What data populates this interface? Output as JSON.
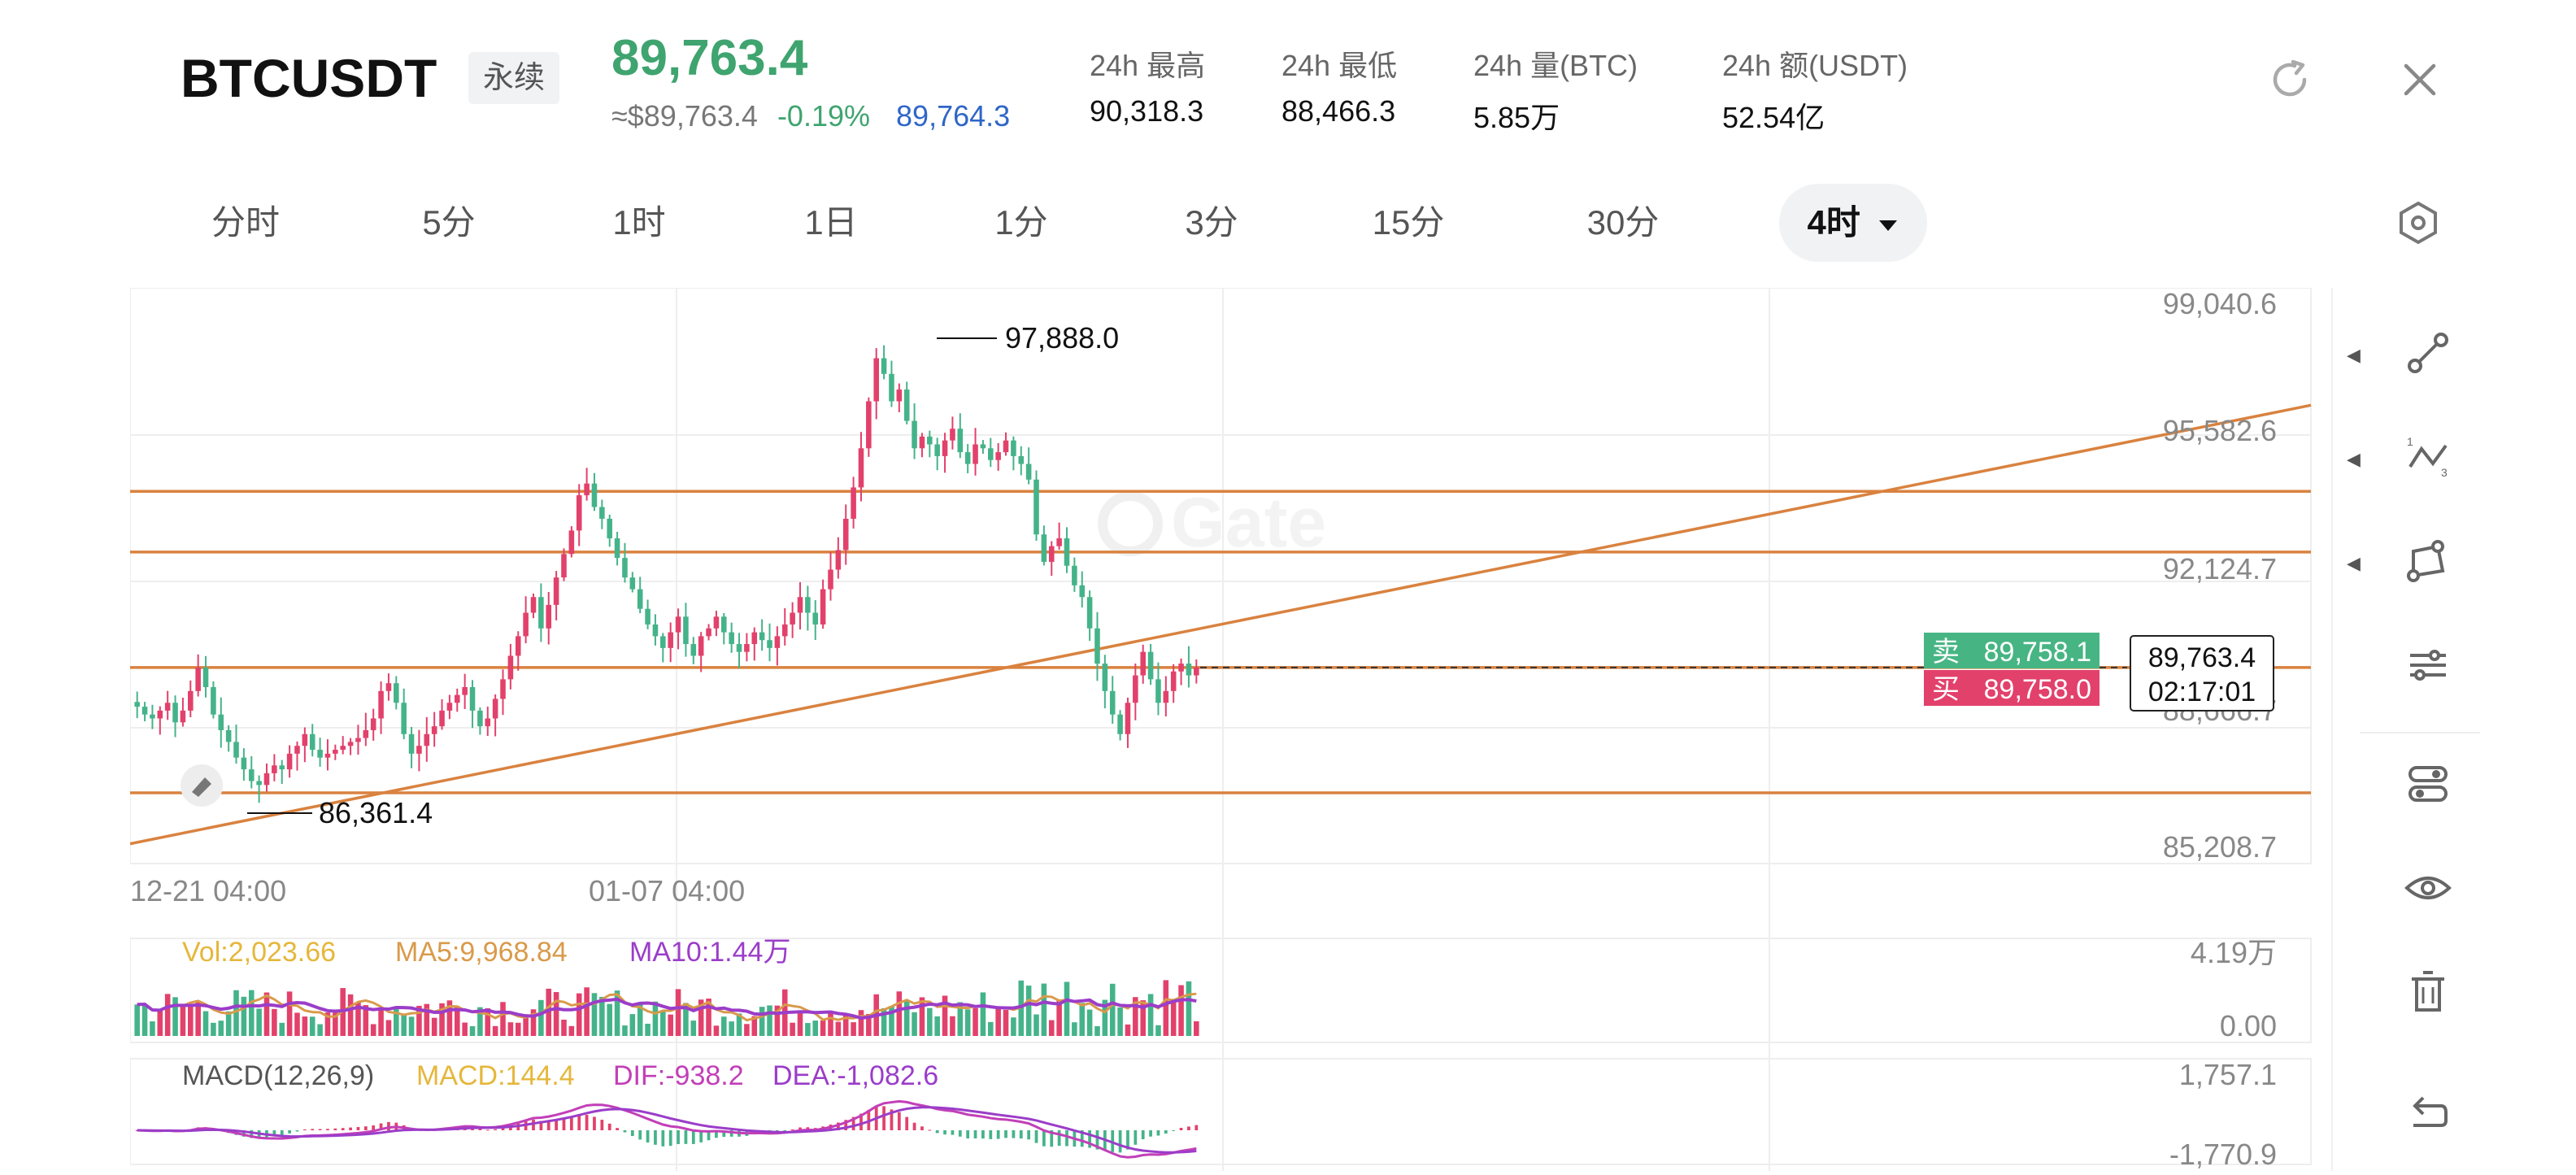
{
  "header": {
    "symbol": "BTCUSDT",
    "badge": "永续",
    "last_price": "89,763.4",
    "approx_price": "≈$89,763.4",
    "change_pct": "-0.19%",
    "mark_price": "89,764.3",
    "stats": [
      {
        "label": "24h  最高",
        "value": "90,318.3"
      },
      {
        "label": "24h  最低",
        "value": "88,466.3"
      },
      {
        "label": "24h  量(BTC)",
        "value": "5.85万"
      },
      {
        "label": "24h  额(USDT)",
        "value": "52.54亿"
      }
    ]
  },
  "tabs": [
    {
      "label": "分时",
      "active": false
    },
    {
      "label": "5分",
      "active": false
    },
    {
      "label": "1时",
      "active": false
    },
    {
      "label": "1日",
      "active": false
    },
    {
      "label": "1分",
      "active": false
    },
    {
      "label": "3分",
      "active": false
    },
    {
      "label": "15分",
      "active": false
    },
    {
      "label": "30分",
      "active": false
    },
    {
      "label": "4时",
      "active": true
    }
  ],
  "chart_data": {
    "type": "candlestick",
    "watermark": "Gate",
    "price_axis": [
      "99,040.6",
      "95,582.6",
      "92,124.7",
      "88,666.7",
      "85,208.7"
    ],
    "price_range": [
      85208.7,
      99040.6
    ],
    "time_axis": [
      "12-21 04:00",
      "01-07 04:00"
    ],
    "high_label": "97,888.0",
    "low_label": "86,361.4",
    "current_price": "89,763.4",
    "countdown": "02:17:01",
    "sell_label": "卖",
    "sell_price": "89,758.1",
    "buy_label": "买",
    "buy_price": "89,758.0",
    "horizontal_lines": [
      94300,
      92750,
      89800,
      86600
    ],
    "trend_line": {
      "from": 85300,
      "to": 96500
    },
    "colors": {
      "up": "#e2416b",
      "down": "#45b38a",
      "drawing": "#d9823f"
    },
    "close_series": [
      88800,
      88600,
      88500,
      88700,
      88900,
      88400,
      88700,
      89200,
      89800,
      89300,
      88600,
      88200,
      87900,
      87500,
      87200,
      86900,
      86800,
      87100,
      87300,
      87200,
      87600,
      87800,
      88100,
      87700,
      87500,
      87600,
      87700,
      87800,
      87900,
      88000,
      88200,
      88500,
      89200,
      89400,
      88900,
      88100,
      87600,
      87800,
      88100,
      88300,
      88700,
      88900,
      89100,
      89300,
      88700,
      88300,
      88500,
      89000,
      89500,
      90100,
      90600,
      91200,
      91600,
      90800,
      91400,
      92100,
      92700,
      93300,
      94200,
      94500,
      93900,
      93600,
      93100,
      92600,
      92100,
      91800,
      91300,
      90900,
      90600,
      90300,
      90700,
      91100,
      90400,
      90100,
      90600,
      90800,
      91100,
      90700,
      90400,
      90200,
      90400,
      90700,
      90500,
      90300,
      90600,
      90900,
      91200,
      91600,
      91200,
      90900,
      91800,
      92300,
      92800,
      93600,
      94400,
      95400,
      96600,
      97700,
      97300,
      96600,
      96900,
      96100,
      95400,
      95700,
      95500,
      95200,
      95600,
      95900,
      95300,
      95000,
      95500,
      95400,
      95100,
      95300,
      95600,
      95200,
      95000,
      94600,
      93200,
      92500,
      92900,
      93100,
      92400,
      91900,
      91600,
      90800,
      89900,
      89200,
      88600,
      88100,
      88900,
      89600,
      90200,
      89500,
      88900,
      89200,
      89700,
      89900,
      89600,
      89800
    ]
  },
  "volume": {
    "vol_label": "Vol:2,023.66",
    "ma5_label": "MA5:9,968.84",
    "ma10_label": "MA10:1.44万",
    "axis_top": "4.19万",
    "axis_bottom": "0.00"
  },
  "macd": {
    "title": "MACD(12,26,9)",
    "macd_label": "MACD:144.4",
    "dif_label": "DIF:-938.2",
    "dea_label": "DEA:-1,082.6",
    "axis_top": "1,757.1",
    "axis_bottom": "-1,770.9"
  },
  "toolbar": {
    "items": [
      "line-tool",
      "fib-tool",
      "shape-tool",
      "settings",
      "indicators",
      "visibility",
      "delete",
      "undo"
    ]
  }
}
